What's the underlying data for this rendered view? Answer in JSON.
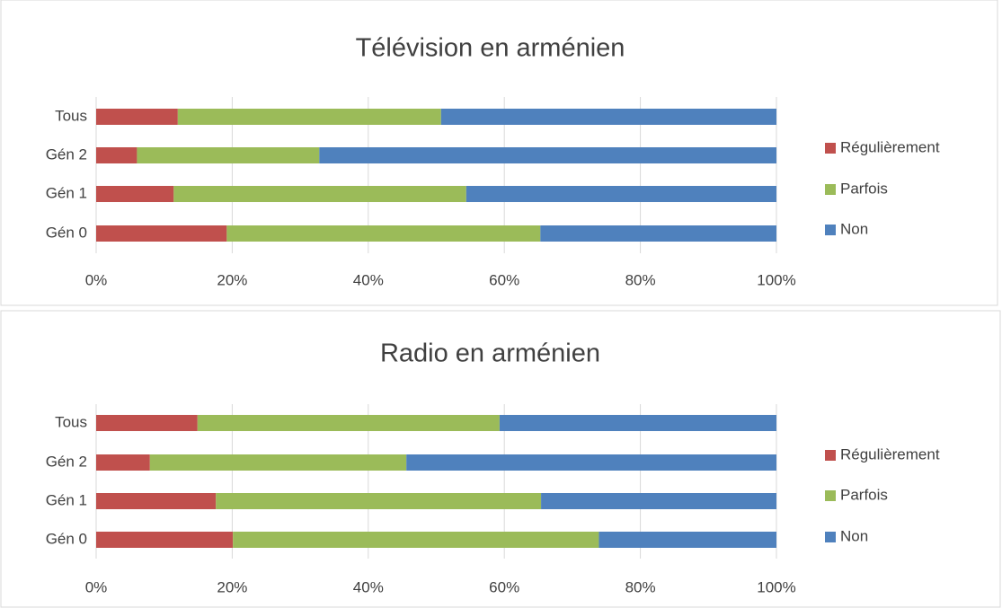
{
  "chart_data": [
    {
      "type": "stacked-bar-horizontal",
      "title": "Télévision en arménien",
      "categories": [
        "Tous",
        "Gén 2",
        "Gén 1",
        "Gén 0"
      ],
      "series": [
        {
          "name": "Régulièrement",
          "color": "#c0504d",
          "values": [
            12,
            6,
            11.4,
            19.2
          ]
        },
        {
          "name": "Parfois",
          "color": "#9bbb59",
          "values": [
            38.7,
            26.8,
            43,
            46.1
          ]
        },
        {
          "name": "Non",
          "color": "#4f81bd",
          "values": [
            49.3,
            67.2,
            45.6,
            34.7
          ]
        }
      ],
      "xlim": [
        0,
        100
      ],
      "xticks": [
        {
          "value": 0,
          "label": "0%"
        },
        {
          "value": 20,
          "label": "20%"
        },
        {
          "value": 40,
          "label": "40%"
        },
        {
          "value": 60,
          "label": "60%"
        },
        {
          "value": 80,
          "label": "80%"
        },
        {
          "value": 100,
          "label": "100%"
        }
      ],
      "grid": true
    },
    {
      "type": "stacked-bar-horizontal",
      "title": "Radio en arménien",
      "categories": [
        "Tous",
        "Gén 2",
        "Gén 1",
        "Gén 0"
      ],
      "series": [
        {
          "name": "Régulièrement",
          "color": "#c0504d",
          "values": [
            14.9,
            7.9,
            17.6,
            20.1
          ]
        },
        {
          "name": "Parfois",
          "color": "#9bbb59",
          "values": [
            44.4,
            37.7,
            47.8,
            53.8
          ]
        },
        {
          "name": "Non",
          "color": "#4f81bd",
          "values": [
            40.7,
            54.4,
            34.6,
            26.1
          ]
        }
      ],
      "xlim": [
        0,
        100
      ],
      "xticks": [
        {
          "value": 0,
          "label": "0%"
        },
        {
          "value": 20,
          "label": "20%"
        },
        {
          "value": 40,
          "label": "40%"
        },
        {
          "value": 60,
          "label": "60%"
        },
        {
          "value": 80,
          "label": "80%"
        },
        {
          "value": 100,
          "label": "100%"
        }
      ],
      "grid": true
    }
  ]
}
